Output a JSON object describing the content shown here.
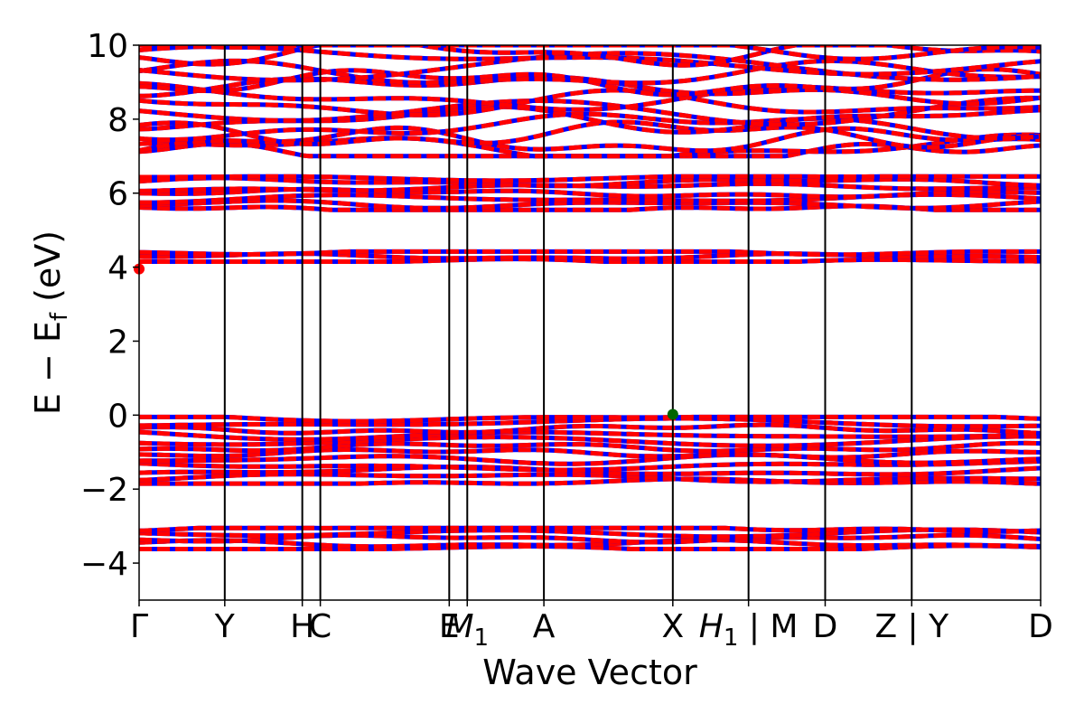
{
  "chart_data": {
    "type": "line",
    "xlabel": "Wave Vector",
    "ylabel": "E − E",
    "ylabel_sub": "f",
    "ylabel_unit": " (eV)",
    "ylim": [
      -5,
      10
    ],
    "yticks": [
      -4,
      -2,
      0,
      2,
      4,
      6,
      8,
      10
    ],
    "ytick_labels": [
      "−4",
      "−2",
      "0",
      "2",
      "4",
      "6",
      "8",
      "10"
    ],
    "xlim": [
      0,
      1
    ],
    "kpath": [
      {
        "label": "Γ",
        "x": 0.0
      },
      {
        "label": "Y",
        "x": 0.095
      },
      {
        "label": "H",
        "x": 0.181
      },
      {
        "label": "C",
        "x": 0.201
      },
      {
        "label": "E",
        "x": 0.344
      },
      {
        "label": "M",
        "sub": "1",
        "x": 0.364
      },
      {
        "label": "A",
        "x": 0.449
      },
      {
        "label": "X",
        "x": 0.592
      },
      {
        "label": "H",
        "sub": "1",
        "x": 0.676,
        "suffix": " | M"
      },
      {
        "label": "D",
        "x": 0.761
      },
      {
        "label": "Z | Y",
        "x": 0.857
      },
      {
        "label": "D",
        "x": 1.0
      }
    ],
    "series_colors": {
      "spin_up": "#ff0000",
      "spin_down": "#0000ff"
    },
    "band_groups": [
      {
        "min": -3.62,
        "max": -3.05,
        "bands": 5
      },
      {
        "min": -1.85,
        "max": -0.05,
        "bands": 12
      },
      {
        "min": 4.15,
        "max": 4.42,
        "bands": 3
      },
      {
        "min": 5.55,
        "max": 6.45,
        "bands": 7
      },
      {
        "min": 7.0,
        "max": 10.0,
        "bands": 16
      }
    ],
    "markers": [
      {
        "name": "VBM",
        "x": 0.592,
        "y": 0.02,
        "color": "#006400"
      },
      {
        "name": "CBM",
        "x": 0.0,
        "y": 3.95,
        "color": "#ff0000"
      }
    ],
    "grid": false,
    "legend": "none"
  }
}
